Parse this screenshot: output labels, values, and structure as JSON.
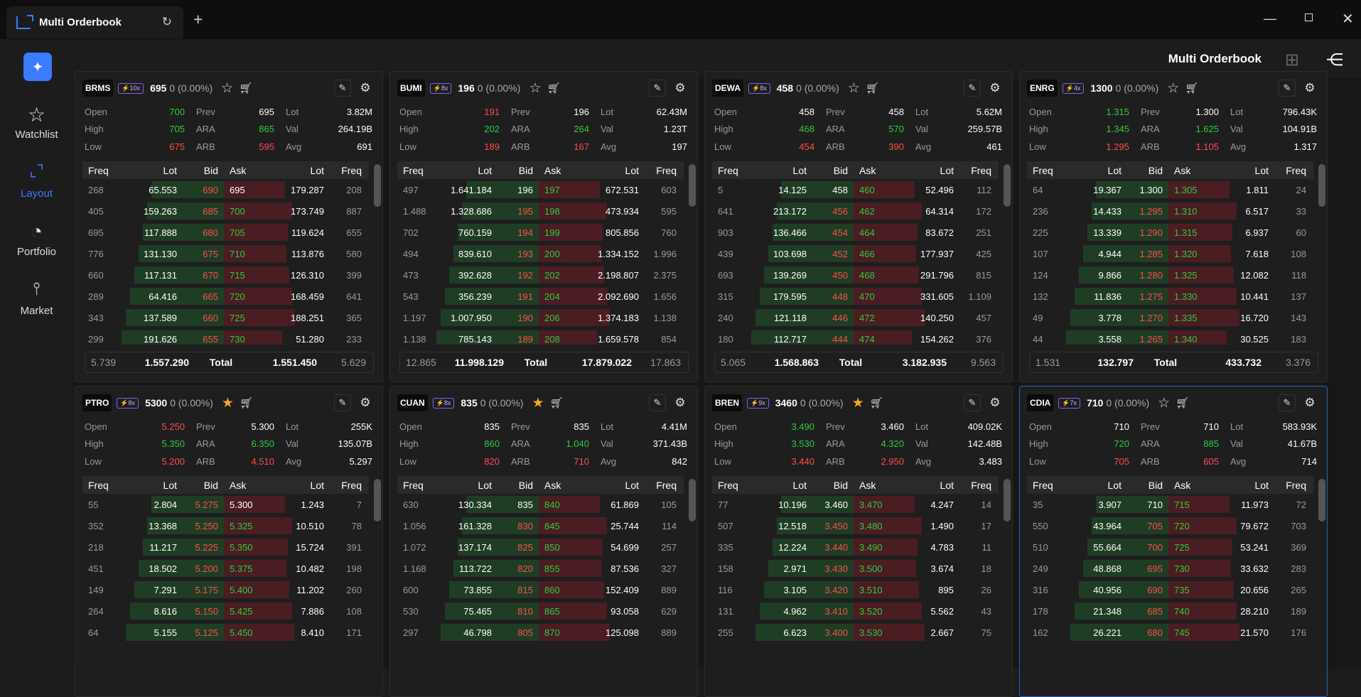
{
  "app": {
    "tab_title": "Multi Orderbook",
    "page_title": "Multi Orderbook"
  },
  "sidebar": {
    "items": [
      {
        "label": "Watchlist",
        "icon": "star-icon"
      },
      {
        "label": "Layout",
        "icon": "layout-icon"
      },
      {
        "label": "Portfolio",
        "icon": "pie-chart-icon"
      },
      {
        "label": "Market",
        "icon": "market-icon"
      }
    ]
  },
  "colors": {
    "accent": "#3a7bff",
    "up": "#2ecc40",
    "down": "#ff4d4d",
    "favorite": "#f5a623"
  },
  "book_headers": [
    "Freq",
    "Lot",
    "Bid",
    "Ask",
    "Lot",
    "Freq"
  ],
  "total_label": "Total",
  "panels": [
    {
      "symbol": "BRMS",
      "leverage": "⚡10x",
      "price": "695",
      "change": "0 (0.00%)",
      "fav": false,
      "stats": [
        [
          "Open",
          "700",
          "g",
          "Prev",
          "695",
          "w",
          "Lot",
          "3.82M"
        ],
        [
          "High",
          "705",
          "g",
          "ARA",
          "865",
          "g",
          "Val",
          "264.19B"
        ],
        [
          "Low",
          "675",
          "r",
          "ARB",
          "595",
          "r",
          "Avg",
          "691"
        ]
      ],
      "rows": [
        [
          "268",
          "65.553",
          "690",
          "695",
          "179.287",
          "208"
        ],
        [
          "405",
          "159.263",
          "685",
          "700",
          "173.749",
          "887"
        ],
        [
          "695",
          "117.888",
          "680",
          "705",
          "119.624",
          "655"
        ],
        [
          "776",
          "131.130",
          "675",
          "710",
          "113.876",
          "580"
        ],
        [
          "660",
          "117.131",
          "670",
          "715",
          "126.310",
          "399"
        ],
        [
          "289",
          "64.416",
          "665",
          "720",
          "168.459",
          "641"
        ],
        [
          "343",
          "137.589",
          "660",
          "725",
          "188.251",
          "365"
        ],
        [
          "299",
          "191.626",
          "655",
          "730",
          "51.280",
          "233"
        ]
      ],
      "bidcol": [
        "r",
        "r",
        "r",
        "r",
        "r",
        "r",
        "r",
        "r"
      ],
      "askcol": [
        "w",
        "g",
        "g",
        "g",
        "g",
        "g",
        "g",
        "g"
      ],
      "total": [
        "5.739",
        "1.557.290",
        "1.551.450",
        "5.629"
      ]
    },
    {
      "symbol": "BUMI",
      "leverage": "⚡8x",
      "price": "196",
      "change": "0 (0.00%)",
      "fav": false,
      "stats": [
        [
          "Open",
          "191",
          "r",
          "Prev",
          "196",
          "w",
          "Lot",
          "62.43M"
        ],
        [
          "High",
          "202",
          "g",
          "ARA",
          "264",
          "g",
          "Val",
          "1.23T"
        ],
        [
          "Low",
          "189",
          "r",
          "ARB",
          "167",
          "r",
          "Avg",
          "197"
        ]
      ],
      "rows": [
        [
          "497",
          "1.641.184",
          "196",
          "197",
          "672.531",
          "603"
        ],
        [
          "1.488",
          "1.328.686",
          "195",
          "198",
          "473.934",
          "595"
        ],
        [
          "702",
          "760.159",
          "194",
          "199",
          "805.856",
          "760"
        ],
        [
          "494",
          "839.610",
          "193",
          "200",
          "1.334.152",
          "1.996"
        ],
        [
          "473",
          "392.628",
          "192",
          "202",
          "2.198.807",
          "2.375"
        ],
        [
          "543",
          "356.239",
          "191",
          "204",
          "2.092.690",
          "1.656"
        ],
        [
          "1.197",
          "1.007.950",
          "190",
          "206",
          "1.374.183",
          "1.138"
        ],
        [
          "1.138",
          "785.143",
          "189",
          "208",
          "1.659.578",
          "854"
        ]
      ],
      "bidcol": [
        "w",
        "r",
        "r",
        "r",
        "r",
        "r",
        "r",
        "r"
      ],
      "askcol": [
        "g",
        "g",
        "g",
        "g",
        "g",
        "g",
        "g",
        "g"
      ],
      "total": [
        "12.865",
        "11.998.129",
        "17.879.022",
        "17.863"
      ]
    },
    {
      "symbol": "DEWA",
      "leverage": "⚡8x",
      "price": "458",
      "change": "0 (0.00%)",
      "fav": false,
      "stats": [
        [
          "Open",
          "458",
          "w",
          "Prev",
          "458",
          "w",
          "Lot",
          "5.62M"
        ],
        [
          "High",
          "468",
          "g",
          "ARA",
          "570",
          "g",
          "Val",
          "259.57B"
        ],
        [
          "Low",
          "454",
          "r",
          "ARB",
          "390",
          "r",
          "Avg",
          "461"
        ]
      ],
      "rows": [
        [
          "5",
          "14.125",
          "458",
          "460",
          "52.496",
          "112"
        ],
        [
          "641",
          "213.172",
          "456",
          "462",
          "64.314",
          "172"
        ],
        [
          "903",
          "136.466",
          "454",
          "464",
          "83.672",
          "251"
        ],
        [
          "439",
          "103.698",
          "452",
          "466",
          "177.937",
          "425"
        ],
        [
          "693",
          "139.269",
          "450",
          "468",
          "291.796",
          "815"
        ],
        [
          "315",
          "179.595",
          "448",
          "470",
          "331.605",
          "1.109"
        ],
        [
          "240",
          "121.118",
          "446",
          "472",
          "140.250",
          "457"
        ],
        [
          "180",
          "112.717",
          "444",
          "474",
          "154.262",
          "376"
        ]
      ],
      "bidcol": [
        "w",
        "r",
        "r",
        "r",
        "r",
        "r",
        "r",
        "r"
      ],
      "askcol": [
        "g",
        "g",
        "g",
        "g",
        "g",
        "g",
        "g",
        "g"
      ],
      "total": [
        "5.065",
        "1.568.863",
        "3.182.935",
        "9.563"
      ]
    },
    {
      "symbol": "ENRG",
      "leverage": "⚡4x",
      "price": "1300",
      "change": "0 (0.00%)",
      "fav": false,
      "stats": [
        [
          "Open",
          "1.315",
          "g",
          "Prev",
          "1.300",
          "w",
          "Lot",
          "796.43K"
        ],
        [
          "High",
          "1.345",
          "g",
          "ARA",
          "1.625",
          "g",
          "Val",
          "104.91B"
        ],
        [
          "Low",
          "1.295",
          "r",
          "ARB",
          "1.105",
          "r",
          "Avg",
          "1.317"
        ]
      ],
      "rows": [
        [
          "64",
          "19.367",
          "1.300",
          "1.305",
          "1.811",
          "24"
        ],
        [
          "236",
          "14.433",
          "1.295",
          "1.310",
          "6.517",
          "33"
        ],
        [
          "225",
          "13.339",
          "1.290",
          "1.315",
          "6.937",
          "60"
        ],
        [
          "107",
          "4.944",
          "1.285",
          "1.320",
          "7.618",
          "108"
        ],
        [
          "124",
          "9.866",
          "1.280",
          "1.325",
          "12.082",
          "118"
        ],
        [
          "132",
          "11.836",
          "1.275",
          "1.330",
          "10.441",
          "137"
        ],
        [
          "49",
          "3.778",
          "1.270",
          "1.335",
          "16.720",
          "143"
        ],
        [
          "44",
          "3.558",
          "1.265",
          "1.340",
          "30.525",
          "183"
        ]
      ],
      "bidcol": [
        "w",
        "r",
        "r",
        "r",
        "r",
        "r",
        "r",
        "r"
      ],
      "askcol": [
        "g",
        "g",
        "g",
        "g",
        "g",
        "g",
        "g",
        "g"
      ],
      "total": [
        "1.531",
        "132.797",
        "433.732",
        "3.376"
      ]
    },
    {
      "symbol": "PTRO",
      "leverage": "⚡8x",
      "price": "5300",
      "change": "0 (0.00%)",
      "fav": true,
      "stats": [
        [
          "Open",
          "5.250",
          "r",
          "Prev",
          "5.300",
          "w",
          "Lot",
          "255K"
        ],
        [
          "High",
          "5.350",
          "g",
          "ARA",
          "6.350",
          "g",
          "Val",
          "135.07B"
        ],
        [
          "Low",
          "5.200",
          "r",
          "ARB",
          "4.510",
          "r",
          "Avg",
          "5.297"
        ]
      ],
      "rows": [
        [
          "55",
          "2.804",
          "5.275",
          "5.300",
          "1.243",
          "7"
        ],
        [
          "352",
          "13.368",
          "5.250",
          "5.325",
          "10.510",
          "78"
        ],
        [
          "218",
          "11.217",
          "5.225",
          "5.350",
          "15.724",
          "391"
        ],
        [
          "451",
          "18.502",
          "5.200",
          "5.375",
          "10.482",
          "198"
        ],
        [
          "149",
          "7.291",
          "5.175",
          "5.400",
          "11.202",
          "260"
        ],
        [
          "264",
          "8.616",
          "5.150",
          "5.425",
          "7.886",
          "108"
        ],
        [
          "64",
          "5.155",
          "5.125",
          "5.450",
          "8.410",
          "171"
        ]
      ],
      "bidcol": [
        "r",
        "r",
        "r",
        "r",
        "r",
        "r",
        "r"
      ],
      "askcol": [
        "w",
        "g",
        "g",
        "g",
        "g",
        "g",
        "g"
      ],
      "total": [
        "",
        "",
        "",
        ""
      ]
    },
    {
      "symbol": "CUAN",
      "leverage": "⚡8x",
      "price": "835",
      "change": "0 (0.00%)",
      "fav": true,
      "stats": [
        [
          "Open",
          "835",
          "w",
          "Prev",
          "835",
          "w",
          "Lot",
          "4.41M"
        ],
        [
          "High",
          "860",
          "g",
          "ARA",
          "1.040",
          "g",
          "Val",
          "371.43B"
        ],
        [
          "Low",
          "820",
          "r",
          "ARB",
          "710",
          "r",
          "Avg",
          "842"
        ]
      ],
      "rows": [
        [
          "630",
          "130.334",
          "835",
          "840",
          "61.869",
          "105"
        ],
        [
          "1.056",
          "161.328",
          "830",
          "845",
          "25.744",
          "114"
        ],
        [
          "1.072",
          "137.174",
          "825",
          "850",
          "54.699",
          "257"
        ],
        [
          "1.168",
          "113.722",
          "820",
          "855",
          "87.536",
          "327"
        ],
        [
          "600",
          "73.855",
          "815",
          "860",
          "152.409",
          "889"
        ],
        [
          "530",
          "75.465",
          "810",
          "865",
          "93.058",
          "629"
        ],
        [
          "297",
          "46.798",
          "805",
          "870",
          "125.098",
          "889"
        ]
      ],
      "bidcol": [
        "w",
        "r",
        "r",
        "r",
        "r",
        "r",
        "r"
      ],
      "askcol": [
        "g",
        "g",
        "g",
        "g",
        "g",
        "g",
        "g"
      ],
      "total": [
        "",
        "",
        "",
        ""
      ]
    },
    {
      "symbol": "BREN",
      "leverage": "⚡9x",
      "price": "3460",
      "change": "0 (0.00%)",
      "fav": true,
      "stats": [
        [
          "Open",
          "3.490",
          "g",
          "Prev",
          "3.460",
          "w",
          "Lot",
          "409.02K"
        ],
        [
          "High",
          "3.530",
          "g",
          "ARA",
          "4.320",
          "g",
          "Val",
          "142.48B"
        ],
        [
          "Low",
          "3.440",
          "r",
          "ARB",
          "2.950",
          "r",
          "Avg",
          "3.483"
        ]
      ],
      "rows": [
        [
          "77",
          "10.196",
          "3.460",
          "3.470",
          "4.247",
          "14"
        ],
        [
          "507",
          "12.518",
          "3.450",
          "3.480",
          "1.490",
          "17"
        ],
        [
          "335",
          "12.224",
          "3.440",
          "3.490",
          "4.783",
          "11"
        ],
        [
          "158",
          "2.971",
          "3.430",
          "3.500",
          "3.674",
          "18"
        ],
        [
          "116",
          "3.105",
          "3.420",
          "3.510",
          "895",
          "26"
        ],
        [
          "131",
          "4.962",
          "3.410",
          "3.520",
          "5.562",
          "43"
        ],
        [
          "255",
          "6.623",
          "3.400",
          "3.530",
          "2.667",
          "75"
        ]
      ],
      "bidcol": [
        "w",
        "r",
        "r",
        "r",
        "r",
        "r",
        "r"
      ],
      "askcol": [
        "g",
        "g",
        "g",
        "g",
        "g",
        "g",
        "g"
      ],
      "total": [
        "",
        "",
        "",
        ""
      ]
    },
    {
      "symbol": "CDIA",
      "leverage": "⚡7x",
      "price": "710",
      "change": "0 (0.00%)",
      "fav": false,
      "stats": [
        [
          "Open",
          "710",
          "w",
          "Prev",
          "710",
          "w",
          "Lot",
          "583.93K"
        ],
        [
          "High",
          "720",
          "g",
          "ARA",
          "885",
          "g",
          "Val",
          "41.67B"
        ],
        [
          "Low",
          "705",
          "r",
          "ARB",
          "605",
          "r",
          "Avg",
          "714"
        ]
      ],
      "rows": [
        [
          "35",
          "3.907",
          "710",
          "715",
          "11.973",
          "72"
        ],
        [
          "550",
          "43.964",
          "705",
          "720",
          "79.672",
          "703"
        ],
        [
          "510",
          "55.664",
          "700",
          "725",
          "53.241",
          "369"
        ],
        [
          "249",
          "48.868",
          "695",
          "730",
          "33.632",
          "283"
        ],
        [
          "316",
          "40.956",
          "690",
          "735",
          "20.656",
          "265"
        ],
        [
          "178",
          "21.348",
          "685",
          "740",
          "28.210",
          "189"
        ],
        [
          "162",
          "26.221",
          "680",
          "745",
          "21.570",
          "176"
        ]
      ],
      "bidcol": [
        "w",
        "r",
        "r",
        "r",
        "r",
        "r",
        "r"
      ],
      "askcol": [
        "g",
        "g",
        "g",
        "g",
        "g",
        "g",
        "g"
      ],
      "total": [
        "",
        "",
        "",
        ""
      ]
    }
  ]
}
